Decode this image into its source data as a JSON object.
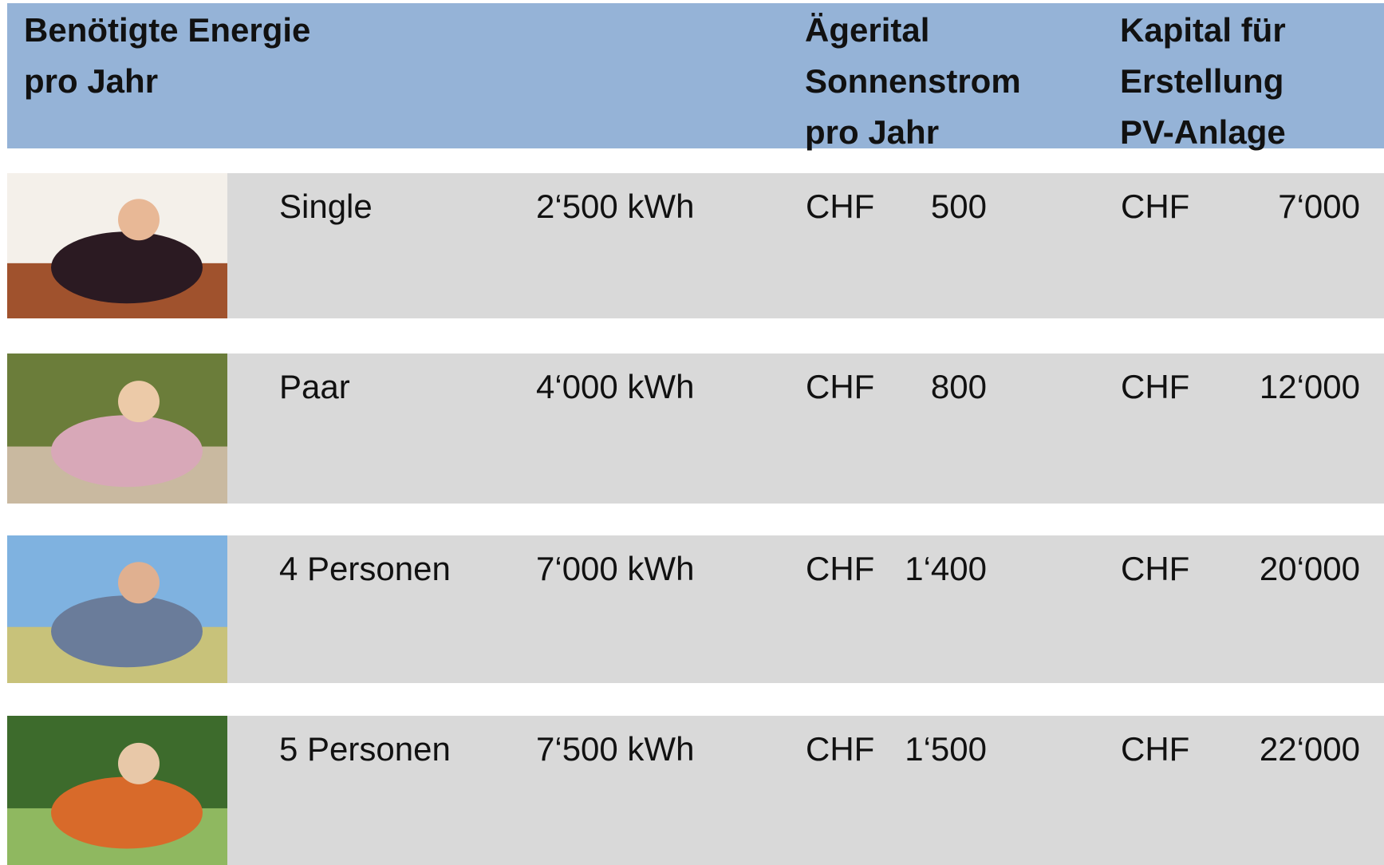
{
  "header": [
    {
      "lines": [
        "Benötigte Energie",
        "pro Jahr"
      ]
    },
    {
      "lines": [
        "Ägerital",
        "Sonnenstrom",
        "pro Jahr"
      ]
    },
    {
      "lines": [
        "Kapital für",
        "Erstellung",
        "PV-Anlage"
      ]
    }
  ],
  "table": {
    "rows": [
      [
        "Single",
        "2‘500 kWh",
        "CHF",
        "500",
        "CHF",
        "7‘000"
      ],
      [
        "Paar",
        "4‘000 kWh",
        "CHF",
        "800",
        "CHF",
        "12‘000"
      ],
      [
        "4 Personen",
        "7‘000 kWh",
        "CHF",
        "1‘400",
        "CHF",
        "20‘000"
      ],
      [
        "5 Personen",
        "7‘500 kWh",
        "CHF",
        "1‘500",
        "CHF",
        "22‘000"
      ]
    ]
  }
}
